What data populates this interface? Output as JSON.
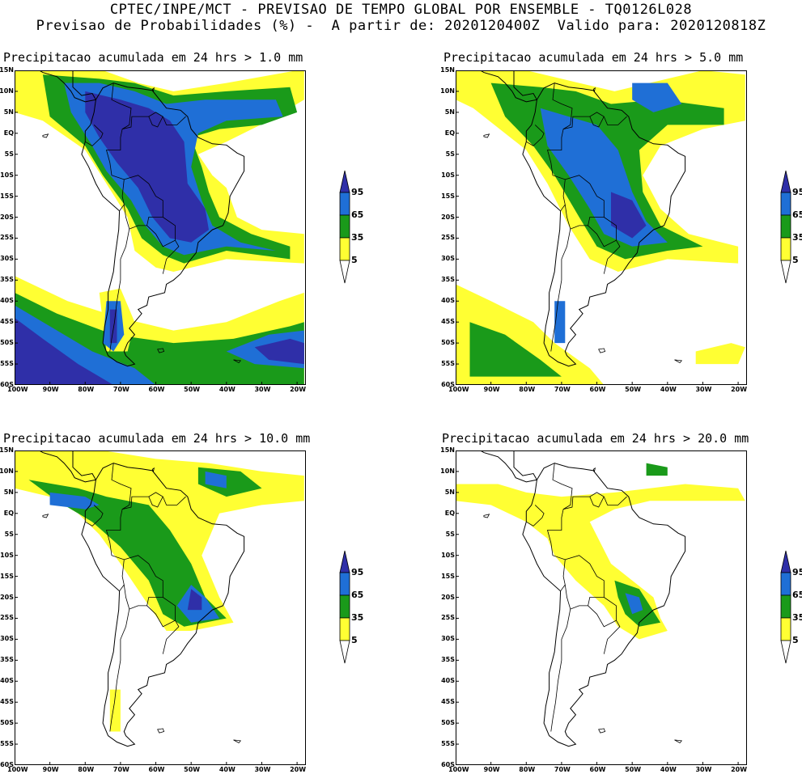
{
  "header": {
    "line1": "CPTEC/INPE/MCT - PREVISAO DE TEMPO GLOBAL POR ENSEMBLE - TQ0126L028",
    "line2": "Previsao de Probabilidades (%) -  A partir de: 2020120400Z  Valido para: 2020120818Z"
  },
  "axes": {
    "lat_labels": [
      "15N",
      "10N",
      "5N",
      "EQ",
      "5S",
      "10S",
      "15S",
      "20S",
      "25S",
      "30S",
      "35S",
      "40S",
      "45S",
      "50S",
      "55S",
      "60S"
    ],
    "lon_labels": [
      "100W",
      "90W",
      "80W",
      "70W",
      "60W",
      "50W",
      "40W",
      "30W",
      "20W"
    ]
  },
  "colorbar": {
    "levels": [
      "5",
      "35",
      "65",
      "95"
    ],
    "colors": [
      "#ffff33",
      "#1a9a1a",
      "#1f6fd6",
      "#2f2fa8"
    ]
  },
  "panels": [
    {
      "title": "Precipitacao acumulada em 24 hrs > 1.0 mm"
    },
    {
      "title": "Precipitacao acumulada em 24 hrs > 5.0 mm"
    },
    {
      "title": "Precipitacao acumulada em 24 hrs > 10.0 mm"
    },
    {
      "title": "Precipitacao acumulada em 24 hrs > 20.0 mm"
    }
  ]
}
